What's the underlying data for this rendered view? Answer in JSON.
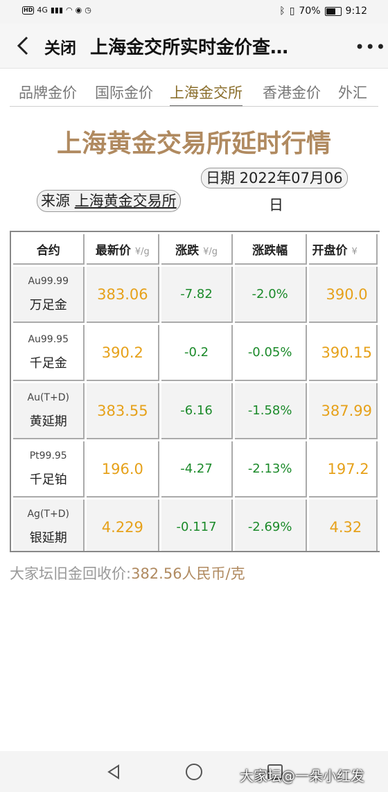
{
  "status_bar": {
    "left_glyphs": [
      "HD",
      "4G",
      "▮▮▮",
      "◠",
      "◉",
      "◷"
    ],
    "battery": "70%",
    "battery_level": 0.7,
    "time": "9:12"
  },
  "title_bar": {
    "back_icon": "chevron-left-icon",
    "close_label": "关闭",
    "title": "上海金交所实时金价查…",
    "more_icon": "more-dots-icon",
    "more_glyph": "•••"
  },
  "tabs": [
    "品牌金价",
    "国际金价",
    "上海金交所",
    "香港金价",
    "外汇"
  ],
  "active_tab": "上海金交所",
  "heading": "上海黄金交易所延时行情",
  "date": {
    "label": "日期 2022年07月0",
    "suffix": "6",
    "tail": "日"
  },
  "source": {
    "label": "来源",
    "name": "上海黄金交易所"
  },
  "table": {
    "headers": [
      {
        "label": "合约",
        "unit": ""
      },
      {
        "label": "最新价",
        "unit": "¥/g"
      },
      {
        "label": "涨跌",
        "unit": "¥/g"
      },
      {
        "label": "涨跌幅",
        "unit": ""
      },
      {
        "label": "开盘价",
        "unit": "¥"
      }
    ],
    "rows": [
      {
        "code": "Au99.99",
        "name": "万足金",
        "latest": "383.06",
        "change": "-7.82",
        "pct": "-2.0%",
        "open": "390.0"
      },
      {
        "code": "Au99.95",
        "name": "千足金",
        "latest": "390.2",
        "change": "-0.2",
        "pct": "-0.05%",
        "open": "390.15"
      },
      {
        "code": "Au(T+D)",
        "name": "黄延期",
        "latest": "383.55",
        "change": "-6.16",
        "pct": "-1.58%",
        "open": "387.99"
      },
      {
        "code": "Pt99.95",
        "name": "千足铂",
        "latest": "196.0",
        "change": "-4.27",
        "pct": "-2.13%",
        "open": "197.2"
      },
      {
        "code": "Ag(T+D)",
        "name": "银延期",
        "latest": "4.229",
        "change": "-0.117",
        "pct": "-2.69%",
        "open": "4.32"
      }
    ]
  },
  "recycle": {
    "label": "大家坛旧金回收价:",
    "value": "382.56人民币/克"
  },
  "nav_bar": {
    "back_icon": "triangle-back-icon",
    "home_icon": "circle-home-icon",
    "recent_icon": "square-recent-icon"
  },
  "watermark": "大家坛@一朵小红发",
  "colors": {
    "price": "#e6a11a",
    "change": "#1b8a2a",
    "heading": "#b08a60",
    "active_tab": "#8a6e2b"
  }
}
